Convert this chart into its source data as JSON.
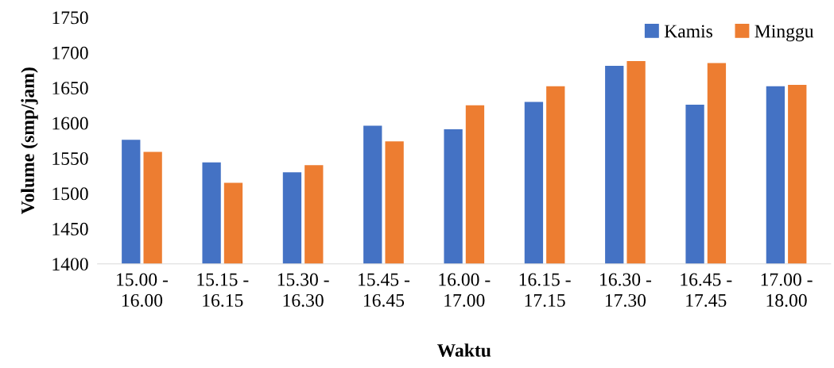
{
  "chart_data": {
    "type": "bar",
    "xlabel": "Waktu",
    "ylabel": "Volume (smp/jam)",
    "categories": [
      "15.00 -\n16.00",
      "15.15 -\n16.15",
      "15.30 -\n16.30",
      "15.45 -\n16.45",
      "16.00 -\n17.00",
      "16.15 -\n17.15",
      "16.30 -\n17.30",
      "16.45 -\n17.45",
      "17.00 -\n18.00"
    ],
    "series": [
      {
        "name": "Kamis",
        "color": "#4472c4",
        "values": [
          1576,
          1544,
          1530,
          1596,
          1591,
          1630,
          1681,
          1626,
          1652
        ]
      },
      {
        "name": "Minggu",
        "color": "#ed7d31",
        "values": [
          1559,
          1515,
          1540,
          1574,
          1625,
          1652,
          1688,
          1685,
          1654
        ]
      }
    ],
    "ylim": [
      1400,
      1750
    ],
    "yticks": [
      1400,
      1450,
      1500,
      1550,
      1600,
      1650,
      1700,
      1750
    ],
    "grid": false,
    "legend": "top right"
  }
}
